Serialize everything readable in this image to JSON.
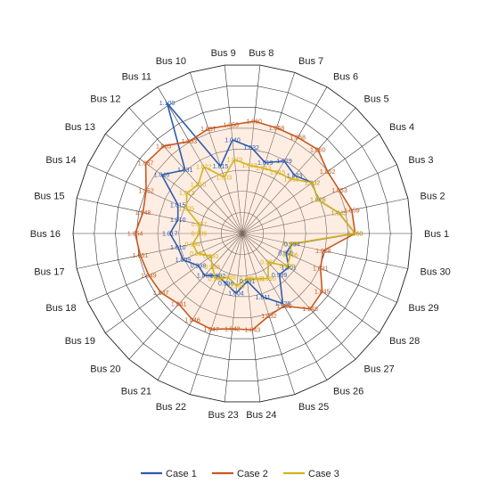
{
  "chart_data": {
    "type": "radar",
    "title": "",
    "categories": [
      "Bus 1",
      "Bus 2",
      "Bus 3",
      "Bus 4",
      "Bus 5",
      "Bus 6",
      "Bus 7",
      "Bus 8",
      "Bus 9",
      "Bus 10",
      "Bus 11",
      "Bus 12",
      "Bus 13",
      "Bus 14",
      "Bus 15",
      "Bus 16",
      "Bus 17",
      "Bus 18",
      "Bus 19",
      "Bus 20",
      "Bus 21",
      "Bus 22",
      "Bus 23",
      "Bus 24",
      "Bus 25",
      "Bus 26",
      "Bus 27",
      "Bus 28",
      "Bus 29",
      "Bus 30"
    ],
    "rlim": [
      0.94,
      1.12
    ],
    "grid": true,
    "legend_position": "bottom",
    "series": [
      {
        "name": "Case 1",
        "color": "#2e5cad",
        "fill": "none",
        "values": [
          1.06,
          1.045,
          1.028,
          1.032,
          1.023,
          1.029,
          1.019,
          1.032,
          1.04,
          1.015,
          1.1,
          1.031,
          1.046,
          1.015,
          1.01,
          1.017,
          1.01,
          1.009,
          0.998,
          1.0,
          0.992,
          0.996,
          1.004,
          0.991,
          1.011,
          1.026,
          0.999,
          1.001,
          0.991,
          0.994
        ],
        "labels": [
          "1.060",
          "1.045",
          "1.028",
          "1.032",
          "1.023",
          "1.029",
          "1.019",
          "1.032",
          "1.040",
          "1.015",
          "1.100",
          "1.031",
          "1.046",
          "1.015",
          "1.010",
          "1.017",
          "1.010",
          "1.009",
          "0.998",
          "1.000",
          "0.992",
          "0.996",
          "1.004",
          "0.991",
          "1.011",
          "1.026",
          "0.999",
          "1.001",
          "0.991",
          "0.994"
        ]
      },
      {
        "name": "Case 2",
        "color": "#c55a22",
        "fill": "rgba(248,203,173,0.35)",
        "values": [
          1.06,
          1.059,
          1.053,
          1.052,
          1.06,
          1.058,
          1.058,
          1.06,
          1.056,
          1.057,
          1.053,
          1.065,
          1.067,
          1.052,
          1.048,
          1.054,
          1.051,
          1.049,
          1.047,
          1.041,
          1.046,
          1.047,
          1.042,
          1.043,
          1.032,
          1.029,
          1.048,
          1.045,
          1.031,
          1.028
        ],
        "labels": [
          "1.060",
          "1.059",
          "1.053",
          "1.052",
          "1.060",
          "1.058",
          "1.058",
          "1.060",
          "1.056",
          "1.057",
          "1.053",
          "1.065",
          "1.067",
          "1.052",
          "1.048",
          "1.054",
          "1.051",
          "1.049",
          "1.047",
          "1.041",
          "1.046",
          "1.047",
          "1.042",
          "1.043",
          "1.032",
          "1.029",
          "1.048",
          "1.045",
          "1.031",
          "1.028"
        ]
      },
      {
        "name": "Case 3",
        "color": "#d4b21a",
        "fill": "none",
        "values": [
          1.06,
          1.045,
          1.028,
          1.032,
          1.018,
          1.015,
          1.013,
          1.013,
          1.019,
          1.003,
          1.022,
          1.01,
          1.013,
          1.005,
          0.987,
          0.986,
          0.994,
          0.992,
          0.981,
          0.988,
          0.996,
          0.989,
          0.996,
          0.988,
          0.991,
          0.995,
          0.981,
          0.999,
          0.996,
          0.993
        ],
        "labels": [
          "1.060",
          "1.045",
          "1.028",
          "1.032",
          "1.018",
          "1.015",
          "1.013",
          "1.013",
          "1.019",
          "1.003",
          "1.022",
          "1.010",
          "1.013",
          "1.005",
          "0.987",
          "0.986",
          "0.994",
          "0.992",
          "0.981",
          "0.988",
          "0.996",
          "0.989",
          "0.996",
          "0.988",
          "0.991",
          "0.995",
          "0.981",
          "0.999",
          "0.996",
          "0.993"
        ]
      }
    ]
  }
}
